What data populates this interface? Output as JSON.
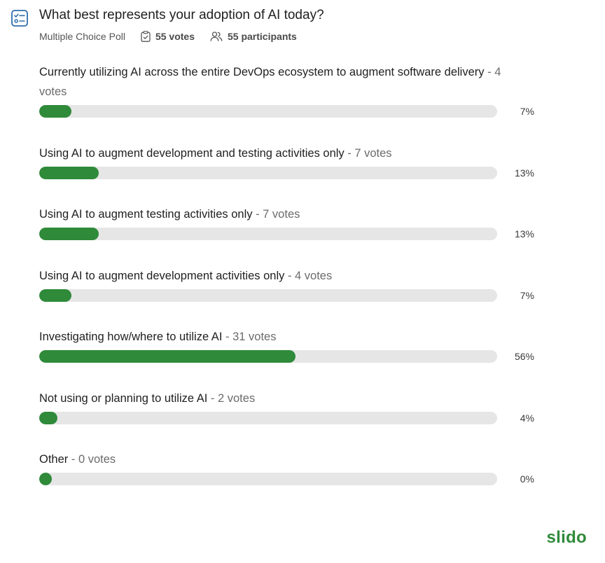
{
  "poll": {
    "title": "What best represents your adoption of AI today?",
    "type": "Multiple Choice Poll",
    "votes": "55 votes",
    "participants": "55 participants",
    "icon": "poll-checklist-icon"
  },
  "options": [
    {
      "label": "Currently utilizing AI across the entire DevOps ecosystem to augment software delivery",
      "votes": "4 votes",
      "percent": "7%",
      "fill": 0.07
    },
    {
      "label": "Using AI to augment development and testing activities only",
      "votes": "7 votes",
      "percent": "13%",
      "fill": 0.13
    },
    {
      "label": "Using AI to augment testing activities only",
      "votes": "7 votes",
      "percent": "13%",
      "fill": 0.13
    },
    {
      "label": "Using AI to augment development activities only",
      "votes": "4 votes",
      "percent": "7%",
      "fill": 0.07
    },
    {
      "label": "Investigating how/where to utilize AI",
      "votes": "31 votes",
      "percent": "56%",
      "fill": 0.56
    },
    {
      "label": "Not using or planning to utilize AI",
      "votes": "2 votes",
      "percent": "4%",
      "fill": 0.04
    },
    {
      "label": "Other",
      "votes": "0 votes",
      "percent": "0%",
      "fill": 0.0
    }
  ],
  "brand": {
    "name": "slido"
  },
  "colors": {
    "accent": "#2f8a3a",
    "track": "#e6e6e6",
    "icon": "#2e6fae"
  }
}
